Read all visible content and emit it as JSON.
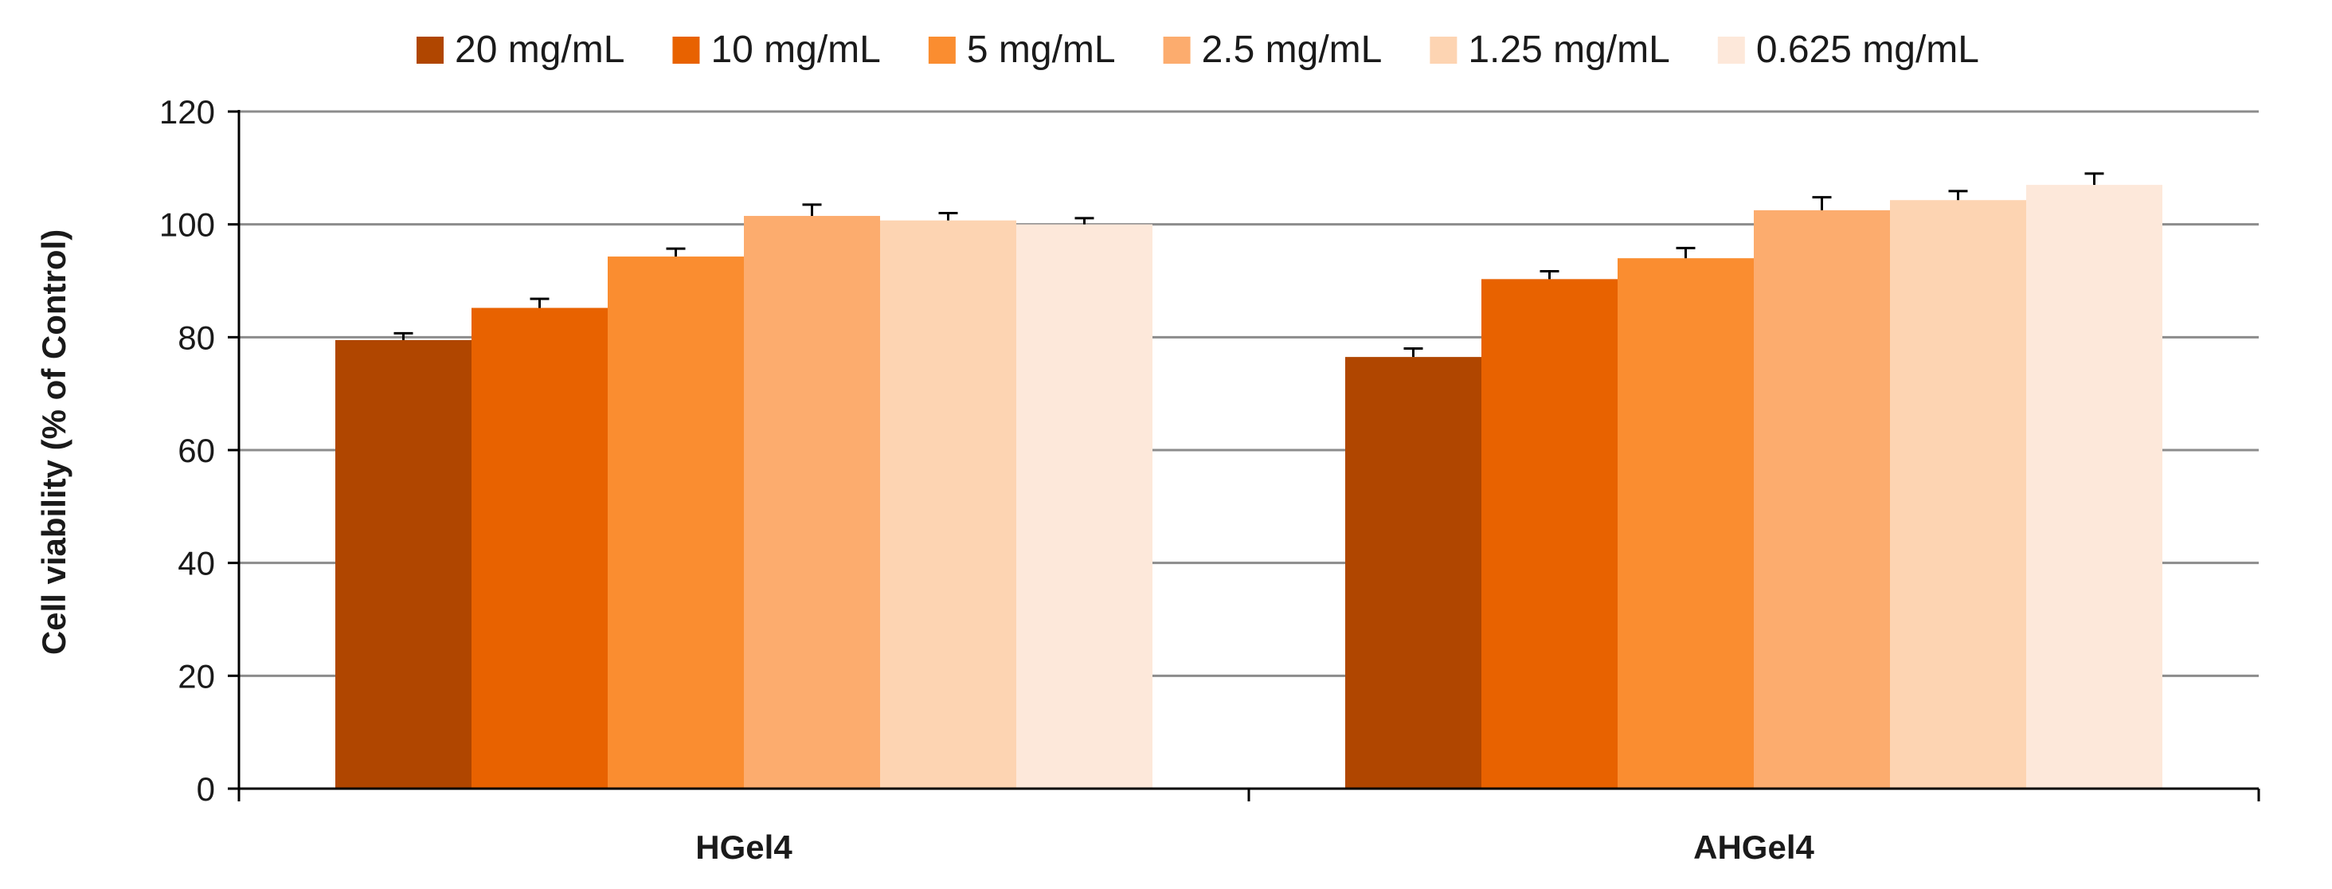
{
  "chart_data": {
    "type": "bar",
    "title": "",
    "xlabel": "",
    "ylabel": "Cell viability (% of Control)",
    "ylim": [
      0,
      120
    ],
    "yticks": [
      0,
      20,
      40,
      60,
      80,
      100,
      120
    ],
    "grid": "horizontal",
    "legend_position": "top",
    "categories": [
      "HGel4",
      "AHGel4"
    ],
    "series": [
      {
        "name": "20 mg/mL",
        "color": "#b04600",
        "values": [
          79.5,
          76.5
        ],
        "errors": [
          1.2,
          1.5
        ]
      },
      {
        "name": "10 mg/mL",
        "color": "#e86200",
        "values": [
          85.2,
          90.3
        ],
        "errors": [
          1.6,
          1.4
        ]
      },
      {
        "name": "5 mg/mL",
        "color": "#fa8d30",
        "values": [
          94.3,
          94.0
        ],
        "errors": [
          1.4,
          1.8
        ]
      },
      {
        "name": "2.5 mg/mL",
        "color": "#fcac6e",
        "values": [
          101.5,
          102.5
        ],
        "errors": [
          2.0,
          2.3
        ]
      },
      {
        "name": "1.25 mg/mL",
        "color": "#fdd4b2",
        "values": [
          100.7,
          104.3
        ],
        "errors": [
          1.3,
          1.6
        ]
      },
      {
        "name": "0.625 mg/mL",
        "color": "#fde8da",
        "values": [
          100.0,
          107.0
        ],
        "errors": [
          1.1,
          2.0
        ]
      }
    ]
  }
}
